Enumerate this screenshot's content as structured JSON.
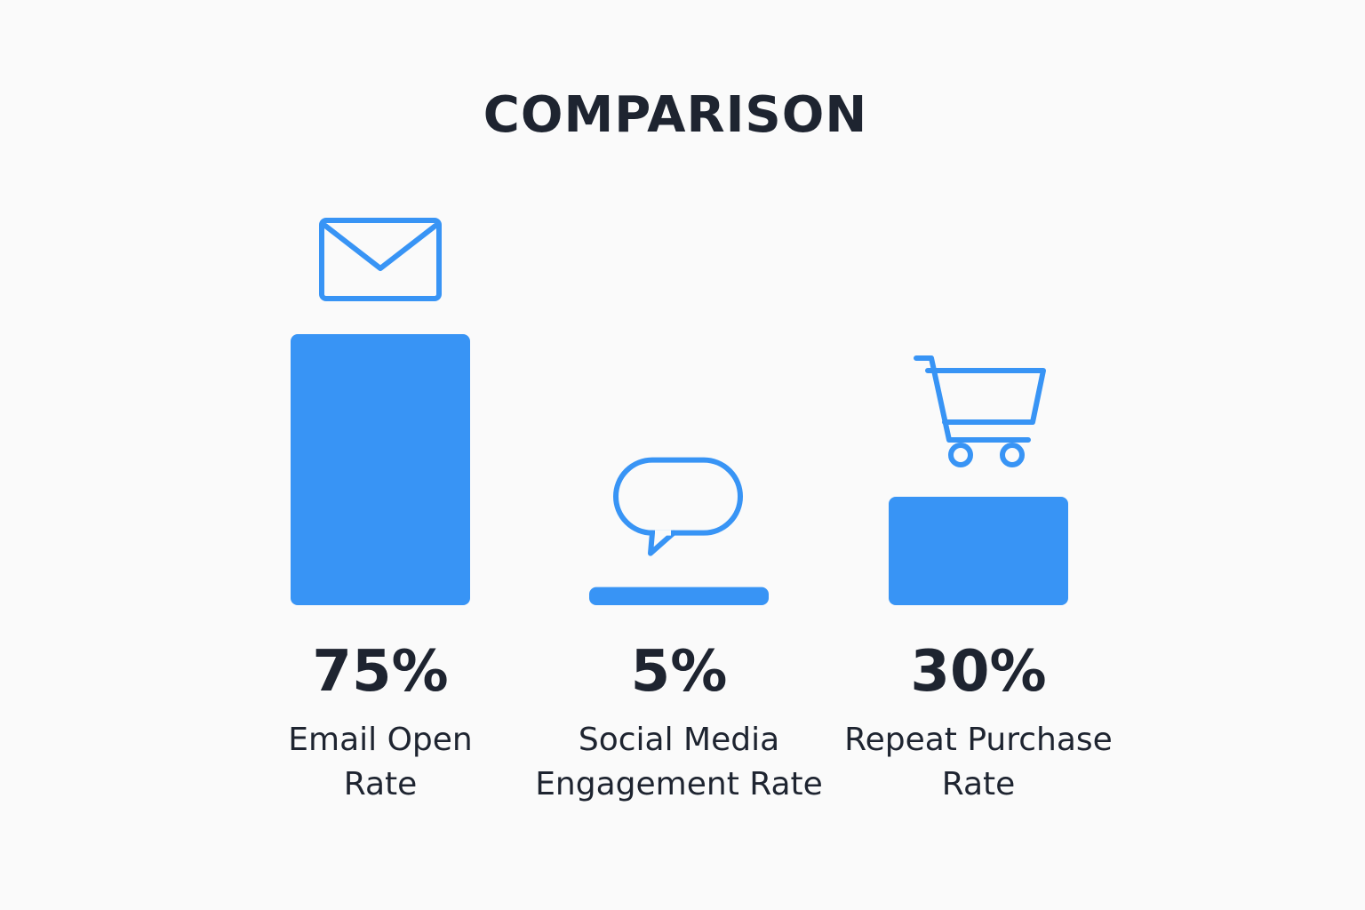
{
  "chart_data": {
    "type": "bar",
    "title": "COMPARISON",
    "categories": [
      "Email Open Rate",
      "Social Media Engagement Rate",
      "Repeat Purchase Rate"
    ],
    "values": [
      75,
      5,
      30
    ],
    "value_labels": [
      "75%",
      "5%",
      "30%"
    ],
    "color": "#3894f5"
  }
}
